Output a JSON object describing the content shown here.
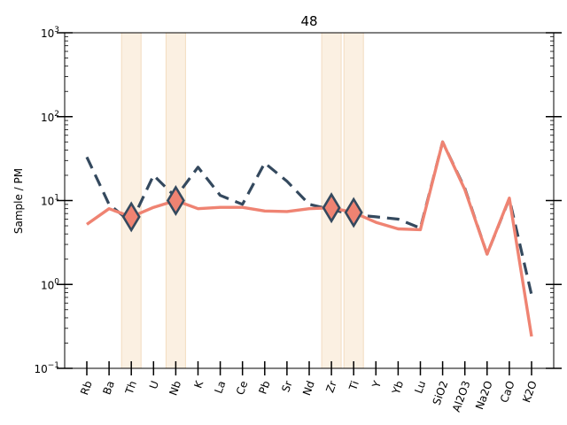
{
  "chart_data": {
    "type": "line",
    "title": "48",
    "xlabel": "",
    "ylabel": "Sample / PM",
    "yscale": "log",
    "ylim": [
      0.1,
      1000
    ],
    "categories": [
      "Rb",
      "Ba",
      "Th",
      "U",
      "Nb",
      "K",
      "La",
      "Ce",
      "Pb",
      "Sr",
      "Nd",
      "Zr",
      "Ti",
      "Y",
      "Yb",
      "Lu",
      "SiO2",
      "Al2O3",
      "Na2O",
      "CaO",
      "K2O"
    ],
    "y_ticks": [
      {
        "value": 0.1,
        "base": "10",
        "exp": "−1"
      },
      {
        "value": 1,
        "base": "10",
        "exp": "0"
      },
      {
        "value": 10,
        "base": "10",
        "exp": "1"
      },
      {
        "value": 100,
        "base": "10",
        "exp": "2"
      },
      {
        "value": 1000,
        "base": "10",
        "exp": "3"
      }
    ],
    "highlight_categories": [
      "Th",
      "Nb",
      "Zr",
      "Ti"
    ],
    "series": [
      {
        "style": "dashed",
        "color": "#34495e",
        "values": [
          33,
          9,
          5.5,
          20,
          11,
          25,
          11.5,
          9,
          28,
          17,
          9,
          7.8,
          6.8,
          6.4,
          6,
          4.7,
          50,
          14,
          2.3,
          10.5,
          0.75
        ]
      },
      {
        "style": "solid",
        "color": "#ef8372",
        "values": [
          5.2,
          8,
          6.4,
          8.3,
          10,
          8,
          8.3,
          8.3,
          7.5,
          7.4,
          8,
          8.2,
          7.2,
          5.5,
          4.6,
          4.5,
          50,
          13.5,
          2.3,
          10.7,
          0.24
        ]
      }
    ],
    "markers": [
      {
        "category": "Th",
        "value": 6.4
      },
      {
        "category": "Nb",
        "value": 10
      },
      {
        "category": "Zr",
        "value": 8.2
      },
      {
        "category": "Ti",
        "value": 7.2
      }
    ],
    "colors": {
      "highlight": "#fbf0e2",
      "highlight_edge": "#f3dcc0",
      "marker_fill": "#ef8372",
      "marker_edge": "#34495e"
    }
  }
}
